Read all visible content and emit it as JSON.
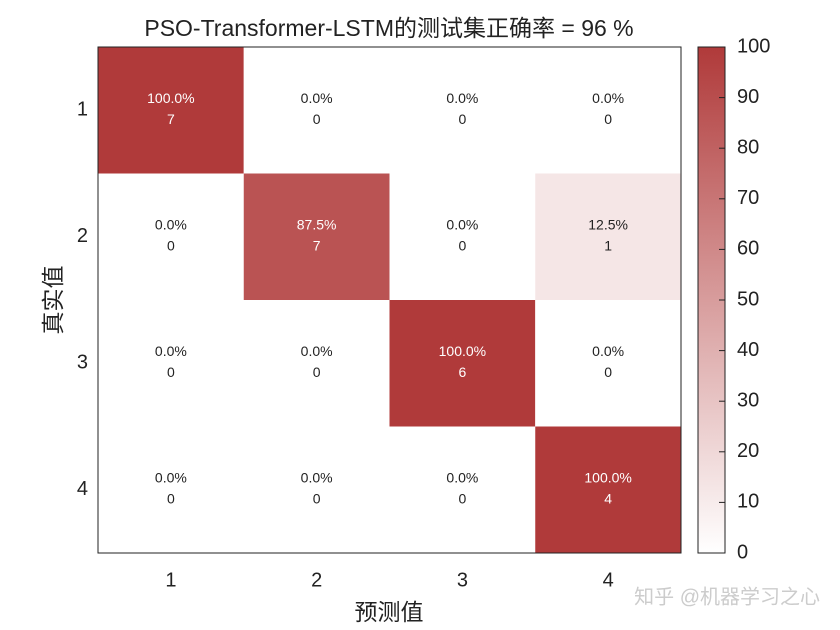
{
  "chart_data": {
    "type": "heatmap",
    "title": "PSO-Transformer-LSTM的测试集正确率 = 96 %",
    "xlabel": "预测值",
    "ylabel": "真实值",
    "x_categories": [
      "1",
      "2",
      "3",
      "4"
    ],
    "y_categories": [
      "1",
      "2",
      "3",
      "4"
    ],
    "values": [
      [
        100,
        0,
        0,
        0
      ],
      [
        0,
        87.5,
        0,
        12.5
      ],
      [
        0,
        0,
        100,
        0
      ],
      [
        0,
        0,
        0,
        100
      ]
    ],
    "value_labels": [
      [
        "100.0%",
        "0.0%",
        "0.0%",
        "0.0%"
      ],
      [
        "0.0%",
        "87.5%",
        "0.0%",
        "12.5%"
      ],
      [
        "0.0%",
        "0.0%",
        "100.0%",
        "0.0%"
      ],
      [
        "0.0%",
        "0.0%",
        "0.0%",
        "100.0%"
      ]
    ],
    "counts": [
      [
        7,
        0,
        0,
        0
      ],
      [
        0,
        7,
        0,
        1
      ],
      [
        0,
        0,
        6,
        0
      ],
      [
        0,
        0,
        0,
        4
      ]
    ],
    "clim": [
      0,
      100
    ],
    "cticks": [
      0,
      10,
      20,
      30,
      40,
      50,
      60,
      70,
      80,
      90,
      100
    ],
    "colormap": [
      "#ffffff",
      "#b03a3a"
    ],
    "watermark": "知乎 @机器学习之心"
  }
}
